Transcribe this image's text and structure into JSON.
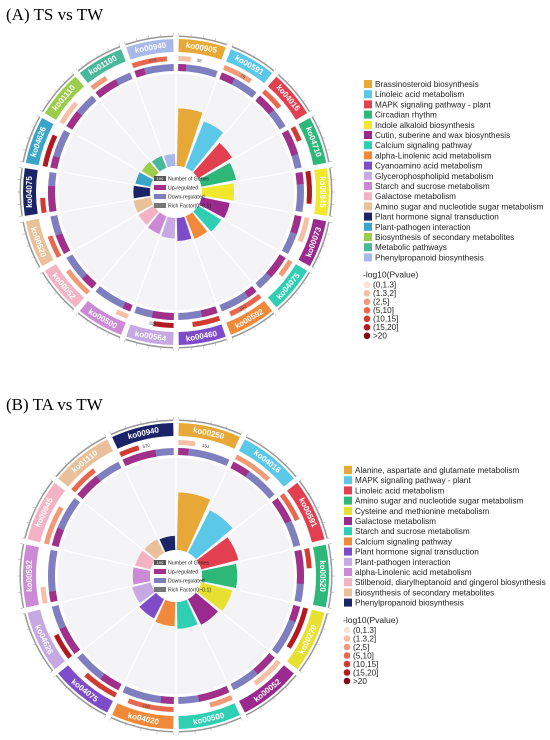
{
  "panels": [
    {
      "id": "A",
      "title": "(A) TS vs TW",
      "center_legend": {
        "box_value": "100",
        "number_label": "Number of Genes",
        "up_label": "Up-regulated",
        "down_label": "Down-regulated",
        "rich_label": "Rich Factor(0~0.1)"
      },
      "legend_header": "-log10(Pvalue)",
      "pvalue_bins": [
        "(0,1.3]",
        "(1.3,2]",
        "(2,5]",
        "(5,10]",
        "(10,15]",
        "(15,20]",
        ">20"
      ],
      "pathways": [
        {
          "id": "ko00905",
          "name": "Brassinosteroid biosynthesis",
          "color": "#e8a838",
          "count": "38",
          "rich": 0.9
        },
        {
          "id": "ko00591",
          "name": "Linoleic acid metabolism",
          "color": "#5bc8e8",
          "count": "79",
          "rich": 0.78
        },
        {
          "id": "ko04016",
          "name": "MAPK signaling pathway - plant",
          "color": "#e23f51",
          "count": "",
          "rich": 0.62
        },
        {
          "id": "ko04710",
          "name": "Circadian rhythm",
          "color": "#2db87a",
          "count": "",
          "rich": 0.55
        },
        {
          "id": "ko00945",
          "name": "Indole alkaloid biosynthesis",
          "color": "#f0e82c",
          "count": "",
          "rich": 0.5
        },
        {
          "id": "ko00073",
          "name": "Cutin, suberine and wax biosynthesis",
          "color": "#9b2a8e",
          "count": "",
          "rich": 0.45
        },
        {
          "id": "ko04075",
          "name": "Calcium signaling pathway",
          "color": "#2fcfb3",
          "count": "",
          "rich": 0.42
        },
        {
          "id": "ko00592",
          "name": "alpha-Linolenic acid metabolism",
          "color": "#f08a3a",
          "count": "162",
          "rich": 0.38
        },
        {
          "id": "ko00460",
          "name": "Cyanoamino acid metabolism",
          "color": "#7e4cc8",
          "count": "",
          "rich": 0.36
        },
        {
          "id": "ko00564",
          "name": "Glycerophospholipid metabolism",
          "color": "#c6a8e2",
          "count": "325",
          "rich": 0.32
        },
        {
          "id": "ko00500",
          "name": "Starch and sucrose metabolism",
          "color": "#cc8ad6",
          "count": "",
          "rich": 0.3
        },
        {
          "id": "ko00052",
          "name": "Galactose metabolism",
          "color": "#f4b3c4",
          "count": "",
          "rich": 0.28
        },
        {
          "id": "ko00520",
          "name": "Amino sugar and nucleotide sugar metabolism",
          "color": "#e8c09a",
          "count": "",
          "rich": 0.27
        },
        {
          "id": "ko04075",
          "name": "Plant hormone signal transduction",
          "color": "#1a2466",
          "count": "",
          "rich": 0.26
        },
        {
          "id": "ko04626",
          "name": "Plant-pathogen interaction",
          "color": "#3aa5c8",
          "count": "",
          "rich": 0.24
        },
        {
          "id": "ko01110",
          "name": "Biosynthesis of secondary metabolites",
          "color": "#9ccd4a",
          "count": "",
          "rich": 0.22
        },
        {
          "id": "ko01100",
          "name": "Metabolic pathways",
          "color": "#4ab89a",
          "count": "",
          "rich": 0.2
        },
        {
          "id": "ko00940",
          "name": "Phenylpropanoid biosynthesis",
          "color": "#a8b8e8",
          "count": "670",
          "rich": 0.19
        }
      ],
      "visible_counts": [
        "38",
        "79",
        "670",
        "162",
        "325"
      ]
    },
    {
      "id": "B",
      "title": "(B) TA vs TW",
      "center_legend": {
        "box_value": "100",
        "number_label": "Number of Genes",
        "up_label": "Up-regulated",
        "down_label": "Down-regulated",
        "rich_label": "Rich Factor(0~0.1)"
      },
      "legend_header": "-log10(Pvalue)",
      "pvalue_bins": [
        "(0,1.3]",
        "(1.3,2]",
        "(2,5]",
        "(5,10]",
        "(10,15]",
        "(15,20]",
        ">20"
      ],
      "pathways": [
        {
          "id": "ko00250",
          "name": "Alanine, aspartate and glutamate metabolism",
          "color": "#e8a838",
          "count": "151",
          "rich": 0.9
        },
        {
          "id": "ko04016",
          "name": "MAPK signaling pathway - plant",
          "color": "#5bc8e8",
          "count": "",
          "rich": 0.75
        },
        {
          "id": "ko00591",
          "name": "Linoleic acid metabolism",
          "color": "#e23f51",
          "count": "",
          "rich": 0.6
        },
        {
          "id": "ko00520",
          "name": "Amino sugar and nucleotide sugar metabolism",
          "color": "#2db87a",
          "count": "",
          "rich": 0.55
        },
        {
          "id": "ko00270",
          "name": "Cysteine and methionine metabolism",
          "color": "#e8e030",
          "count": "",
          "rich": 0.5
        },
        {
          "id": "ko00052",
          "name": "Galactose metabolism",
          "color": "#9b2a8e",
          "count": "",
          "rich": 0.45
        },
        {
          "id": "ko00500",
          "name": "Starch and sucrose metabolism",
          "color": "#2fcfb3",
          "count": "",
          "rich": 0.42
        },
        {
          "id": "ko04020",
          "name": "Calcium signaling pathway",
          "color": "#f08a3a",
          "count": "160",
          "rich": 0.38
        },
        {
          "id": "ko04075",
          "name": "Plant hormone signal transduction",
          "color": "#7e4cc8",
          "count": "",
          "rich": 0.34
        },
        {
          "id": "ko04626",
          "name": "Plant-pathogen interaction",
          "color": "#c6a8e2",
          "count": "",
          "rich": 0.3
        },
        {
          "id": "ko00592",
          "name": "alpha-Linolenic acid metabolism",
          "color": "#cc8ad6",
          "count": "",
          "rich": 0.27
        },
        {
          "id": "ko00945",
          "name": "Stilbenoid, diarylheptanoid and gingerol biosynthesis",
          "color": "#f4b3c4",
          "count": "",
          "rich": 0.25
        },
        {
          "id": "ko01110",
          "name": "Biosynthesis of secondary metabolites",
          "color": "#e8c09a",
          "count": "",
          "rich": 0.24
        },
        {
          "id": "ko00940",
          "name": "Phenylpropanoid biosynthesis",
          "color": "#1a2466",
          "count": "670",
          "rich": 0.22
        }
      ],
      "visible_counts": [
        "151",
        "160",
        "670"
      ]
    }
  ]
}
